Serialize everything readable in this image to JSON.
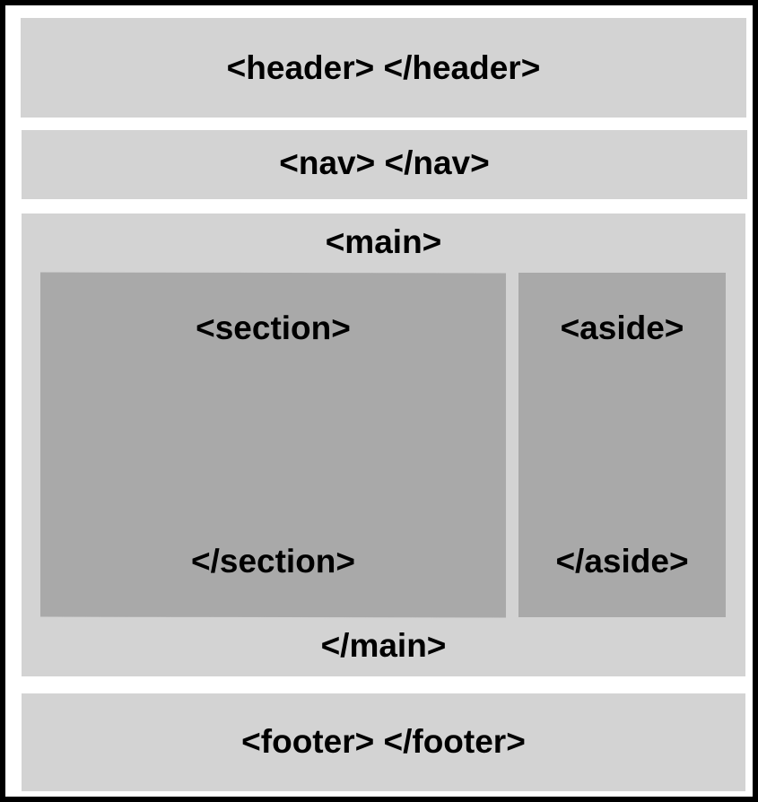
{
  "header": {
    "label": "<header> </header>"
  },
  "nav": {
    "label": "<nav> </nav>"
  },
  "main": {
    "open_tag": "<main>",
    "close_tag": "</main>",
    "section": {
      "open_tag": "<section>",
      "close_tag": "</section>"
    },
    "aside": {
      "open_tag": "<aside>",
      "close_tag": "</aside>"
    }
  },
  "footer": {
    "label": "<footer> </footer>"
  },
  "colors": {
    "border": "#000000",
    "background": "#ffffff",
    "outer_block": "#d3d3d3",
    "inner_block": "#a9a9a9",
    "text": "#000000"
  }
}
